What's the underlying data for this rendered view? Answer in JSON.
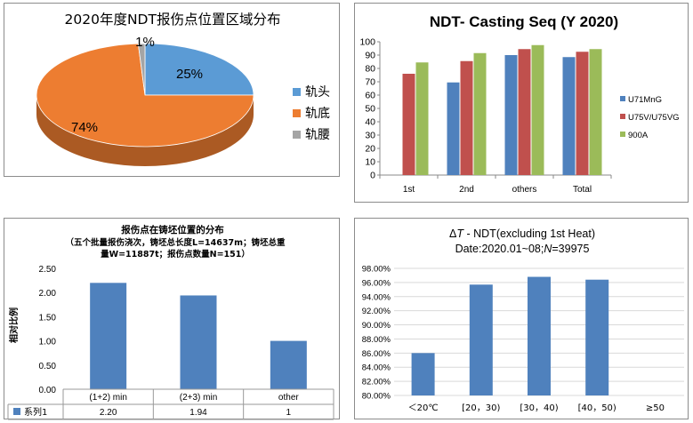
{
  "colors": {
    "blue": "#4f81bd",
    "red": "#c0504d",
    "green": "#9bbb59",
    "orange": "#ed7d31",
    "pie_blue": "#5b9bd5",
    "grey": "#a5a5a5"
  },
  "chart_data": [
    {
      "type": "pie",
      "title": "2020年度NDT报伤点位置区域分布",
      "labels": [
        "轨头",
        "轨底",
        "轨腰"
      ],
      "values": [
        25,
        74,
        1
      ],
      "value_labels": [
        "25%",
        "74%",
        "1%"
      ],
      "legend_position": "right"
    },
    {
      "type": "bar",
      "title": "NDT- Casting Seq (Y 2020)",
      "categories": [
        "1st",
        "2nd",
        "others",
        "Total"
      ],
      "series": [
        {
          "name": "U71MnG",
          "values": [
            null,
            69.5,
            90,
            88.5
          ]
        },
        {
          "name": "U75V/U75VG",
          "values": [
            76,
            85.5,
            94.5,
            92.5
          ]
        },
        {
          "name": "900A",
          "values": [
            84.5,
            91.5,
            97.5,
            94.5
          ]
        }
      ],
      "ylim": [
        0,
        100
      ],
      "yticks": [
        "0",
        "10",
        "20",
        "30",
        "40",
        "50",
        "60",
        "70",
        "80",
        "90",
        "100"
      ],
      "grid": false,
      "legend_position": "right"
    },
    {
      "type": "bar",
      "title": "报伤点在铸坯位置的分布",
      "subtitle_lines": [
        "（五个批量报伤浇次，铸坯总长度L=14637m；铸坯总重",
        "量W=11887t；报伤点数量N=151）"
      ],
      "ylabel": "相对比例",
      "categories": [
        "(1+2) min",
        "(2+3) min",
        "other"
      ],
      "series": [
        {
          "name": "系列1",
          "values": [
            2.2,
            1.94,
            1.0
          ],
          "table_values": [
            "2.20",
            "1.94",
            "1"
          ]
        }
      ],
      "ylim": [
        0,
        2.5
      ],
      "yticks": [
        "0.00",
        "0.50",
        "1.00",
        "1.50",
        "2.00",
        "2.50"
      ],
      "data_table": true,
      "grid": false
    },
    {
      "type": "bar",
      "title_parts": [
        "Δ",
        "T",
        " - NDT(excluding 1st Heat)"
      ],
      "subtitle_parts": [
        "Date:2020.01~08;",
        "N",
        "=39975"
      ],
      "categories": [
        "＜20℃",
        "[20，30)",
        "[30，40)",
        "[40，50)",
        "≥50"
      ],
      "values": [
        86.0,
        95.7,
        96.8,
        96.4,
        null
      ],
      "ylim": [
        80,
        98
      ],
      "yticks": [
        "80.00%",
        "82.00%",
        "84.00%",
        "86.00%",
        "88.00%",
        "90.00%",
        "92.00%",
        "94.00%",
        "96.00%",
        "98.00%"
      ],
      "grid": true
    }
  ]
}
